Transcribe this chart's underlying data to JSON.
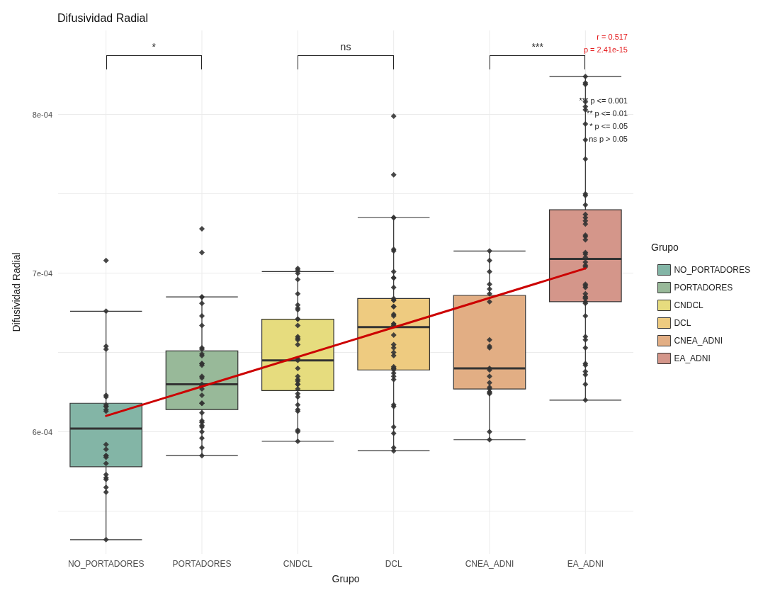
{
  "chart_data": {
    "type": "box",
    "title": "Difusividad Radial",
    "xlabel": "Grupo",
    "ylabel": "Difusividad Radial",
    "legend_title": "Grupo",
    "legend": "right",
    "grid": true,
    "categories": [
      "NO_PORTADORES",
      "PORTADORES",
      "CNDCL",
      "DCL",
      "CNEA_ADNI",
      "EA_ADNI"
    ],
    "ylim": [
      0.000523,
      0.000853
    ],
    "yticks": [
      {
        "value": 0.00055,
        "label": null
      },
      {
        "value": 0.0006,
        "label": "6e-04"
      },
      {
        "value": 0.00065,
        "label": null
      },
      {
        "value": 0.0007,
        "label": "7e-04"
      },
      {
        "value": 0.00075,
        "label": null
      },
      {
        "value": 0.0008,
        "label": "8e-04"
      }
    ],
    "series": [
      {
        "name": "NO_PORTADORES",
        "color": "#83b5a6",
        "boxes": [
          {
            "low": 0.000532,
            "q1": 0.000578,
            "median": 0.000602,
            "q3": 0.000618,
            "high": 0.000676
          },
          null,
          null,
          null,
          null,
          null
        ]
      },
      {
        "name": "PORTADORES",
        "color": "#98b999",
        "boxes": [
          null,
          {
            "low": 0.000585,
            "q1": 0.000614,
            "median": 0.00063,
            "q3": 0.000651,
            "high": 0.000685
          },
          null,
          null,
          null,
          null
        ]
      },
      {
        "name": "CNDCL",
        "color": "#e6dc7e",
        "boxes": [
          null,
          null,
          {
            "low": 0.000594,
            "q1": 0.000626,
            "median": 0.000645,
            "q3": 0.000671,
            "high": 0.000701
          },
          null,
          null,
          null
        ]
      },
      {
        "name": "DCL",
        "color": "#eecb80",
        "boxes": [
          null,
          null,
          null,
          {
            "low": 0.000588,
            "q1": 0.000639,
            "median": 0.000666,
            "q3": 0.000684,
            "high": 0.000735
          },
          null,
          null
        ]
      },
      {
        "name": "CNEA_ADNI",
        "color": "#e2ae84",
        "boxes": [
          null,
          null,
          null,
          null,
          {
            "low": 0.000595,
            "q1": 0.000627,
            "median": 0.00064,
            "q3": 0.000686,
            "high": 0.000714
          },
          null
        ]
      },
      {
        "name": "EA_ADNI",
        "color": "#d4968a",
        "boxes": [
          null,
          null,
          null,
          null,
          null,
          {
            "low": 0.00062,
            "q1": 0.000682,
            "median": 0.000709,
            "q3": 0.00074,
            "high": 0.000824
          }
        ]
      },
      {
        "type": "scatter",
        "color": "#333333",
        "marker": "diamond",
        "x": [
          "NO_PORTADORES",
          "NO_PORTADORES",
          "NO_PORTADORES",
          "NO_PORTADORES",
          "NO_PORTADORES",
          "NO_PORTADORES",
          "NO_PORTADORES",
          "NO_PORTADORES",
          "NO_PORTADORES",
          "NO_PORTADORES",
          "NO_PORTADORES",
          "NO_PORTADORES",
          "NO_PORTADORES",
          "NO_PORTADORES",
          "NO_PORTADORES",
          "NO_PORTADORES",
          "NO_PORTADORES",
          "NO_PORTADORES",
          "NO_PORTADORES",
          "NO_PORTADORES",
          "NO_PORTADORES",
          "NO_PORTADORES",
          "NO_PORTADORES",
          "PORTADORES",
          "PORTADORES",
          "PORTADORES",
          "PORTADORES",
          "PORTADORES",
          "PORTADORES",
          "PORTADORES",
          "PORTADORES",
          "PORTADORES",
          "PORTADORES",
          "PORTADORES",
          "PORTADORES",
          "PORTADORES",
          "PORTADORES",
          "PORTADORES",
          "PORTADORES",
          "PORTADORES",
          "PORTADORES",
          "PORTADORES",
          "PORTADORES",
          "PORTADORES",
          "PORTADORES",
          "PORTADORES",
          "PORTADORES",
          "PORTADORES",
          "PORTADORES",
          "PORTADORES",
          "PORTADORES",
          "PORTADORES",
          "PORTADORES",
          "PORTADORES",
          "CNDCL",
          "CNDCL",
          "CNDCL",
          "CNDCL",
          "CNDCL",
          "CNDCL",
          "CNDCL",
          "CNDCL",
          "CNDCL",
          "CNDCL",
          "CNDCL",
          "CNDCL",
          "CNDCL",
          "CNDCL",
          "CNDCL",
          "CNDCL",
          "CNDCL",
          "CNDCL",
          "CNDCL",
          "CNDCL",
          "CNDCL",
          "CNDCL",
          "CNDCL",
          "CNDCL",
          "CNDCL",
          "CNDCL",
          "CNDCL",
          "CNDCL",
          "CNDCL",
          "CNDCL",
          "CNDCL",
          "CNDCL",
          "DCL",
          "DCL",
          "DCL",
          "DCL",
          "DCL",
          "DCL",
          "DCL",
          "DCL",
          "DCL",
          "DCL",
          "DCL",
          "DCL",
          "DCL",
          "DCL",
          "DCL",
          "DCL",
          "DCL",
          "DCL",
          "DCL",
          "DCL",
          "DCL",
          "DCL",
          "DCL",
          "DCL",
          "DCL",
          "DCL",
          "DCL",
          "DCL",
          "DCL",
          "DCL",
          "DCL",
          "DCL",
          "DCL",
          "DCL",
          "DCL",
          "DCL",
          "DCL",
          "DCL",
          "CNEA_ADNI",
          "CNEA_ADNI",
          "CNEA_ADNI",
          "CNEA_ADNI",
          "CNEA_ADNI",
          "CNEA_ADNI",
          "CNEA_ADNI",
          "CNEA_ADNI",
          "CNEA_ADNI",
          "CNEA_ADNI",
          "CNEA_ADNI",
          "CNEA_ADNI",
          "CNEA_ADNI",
          "CNEA_ADNI",
          "CNEA_ADNI",
          "CNEA_ADNI",
          "CNEA_ADNI",
          "CNEA_ADNI",
          "CNEA_ADNI",
          "CNEA_ADNI",
          "CNEA_ADNI",
          "EA_ADNI",
          "EA_ADNI",
          "EA_ADNI",
          "EA_ADNI",
          "EA_ADNI",
          "EA_ADNI",
          "EA_ADNI",
          "EA_ADNI",
          "EA_ADNI",
          "EA_ADNI",
          "EA_ADNI",
          "EA_ADNI",
          "EA_ADNI",
          "EA_ADNI",
          "EA_ADNI",
          "EA_ADNI",
          "EA_ADNI",
          "EA_ADNI",
          "EA_ADNI",
          "EA_ADNI",
          "EA_ADNI",
          "EA_ADNI",
          "EA_ADNI",
          "EA_ADNI",
          "EA_ADNI",
          "EA_ADNI",
          "EA_ADNI",
          "EA_ADNI",
          "EA_ADNI",
          "EA_ADNI",
          "EA_ADNI",
          "EA_ADNI",
          "EA_ADNI",
          "EA_ADNI",
          "EA_ADNI",
          "EA_ADNI",
          "EA_ADNI",
          "EA_ADNI",
          "EA_ADNI",
          "EA_ADNI",
          "EA_ADNI",
          "EA_ADNI",
          "EA_ADNI",
          "EA_ADNI"
        ],
        "values": [
          0.000708,
          0.000676,
          0.000654,
          0.000652,
          0.000622,
          0.000623,
          0.000617,
          0.000616,
          0.000614,
          0.000613,
          0.000616,
          0.000592,
          0.000589,
          0.000585,
          0.000584,
          0.000585,
          0.00058,
          0.000573,
          0.000571,
          0.00057,
          0.000565,
          0.000562,
          0.000532,
          0.000728,
          0.000713,
          0.000685,
          0.000685,
          0.000681,
          0.000673,
          0.000667,
          0.000653,
          0.000652,
          0.000649,
          0.000648,
          0.000643,
          0.000643,
          0.000642,
          0.000635,
          0.000634,
          0.00063,
          0.000629,
          0.000627,
          0.000623,
          0.000618,
          0.000618,
          0.000612,
          0.000607,
          0.000606,
          0.000604,
          0.000603,
          0.0006,
          0.000596,
          0.00059,
          0.000585,
          0.000703,
          0.000702,
          0.0007,
          0.000696,
          0.000687,
          0.00068,
          0.000678,
          0.000677,
          0.000671,
          0.000671,
          0.000667,
          0.00066,
          0.000658,
          0.000659,
          0.000655,
          0.000646,
          0.000645,
          0.00064,
          0.000635,
          0.000633,
          0.000632,
          0.00063,
          0.00063,
          0.000627,
          0.000624,
          0.000622,
          0.000617,
          0.000614,
          0.000613,
          0.000601,
          0.0006,
          0.000594,
          0.000799,
          0.000762,
          0.000735,
          0.000735,
          0.000715,
          0.000714,
          0.000701,
          0.000697,
          0.000697,
          0.000691,
          0.000684,
          0.000683,
          0.000683,
          0.000679,
          0.000679,
          0.000674,
          0.000673,
          0.000668,
          0.000668,
          0.000667,
          0.000661,
          0.000655,
          0.000653,
          0.00065,
          0.000648,
          0.00064,
          0.00064,
          0.000641,
          0.000639,
          0.000637,
          0.000635,
          0.000633,
          0.000617,
          0.000616,
          0.000603,
          0.000599,
          0.00059,
          0.000588,
          0.000714,
          0.000708,
          0.000701,
          0.000693,
          0.00069,
          0.000687,
          0.000682,
          0.000658,
          0.000654,
          0.000653,
          0.00064,
          0.000639,
          0.000635,
          0.000631,
          0.000628,
          0.000627,
          0.000625,
          0.000624,
          0.000625,
          0.0006,
          0.000595,
          0.000824,
          0.00082,
          0.000819,
          0.000808,
          0.000805,
          0.000803,
          0.000794,
          0.000784,
          0.000772,
          0.00075,
          0.000749,
          0.000743,
          0.000737,
          0.000735,
          0.000733,
          0.000731,
          0.000724,
          0.000723,
          0.000721,
          0.000713,
          0.000712,
          0.00071,
          0.000707,
          0.000705,
          0.000704,
          0.000692,
          0.000691,
          0.000693,
          0.000687,
          0.000685,
          0.000684,
          0.000682,
          0.000685,
          0.000681,
          0.000673,
          0.00066,
          0.000658,
          0.000653,
          0.000643,
          0.000642,
          0.000638,
          0.000636,
          0.00063,
          0.00062
        ]
      },
      {
        "type": "line",
        "color": "#cc0000",
        "x": [
          "NO_PORTADORES",
          "EA_ADNI"
        ],
        "values": [
          0.00061,
          0.000703
        ]
      }
    ],
    "annotations": [
      "*",
      "ns",
      "***",
      "r = 0.517",
      "p = 2.41e-15",
      "*** p <= 0.001",
      "** p <= 0.01",
      "* p <= 0.05",
      "ns p > 0.05"
    ]
  }
}
